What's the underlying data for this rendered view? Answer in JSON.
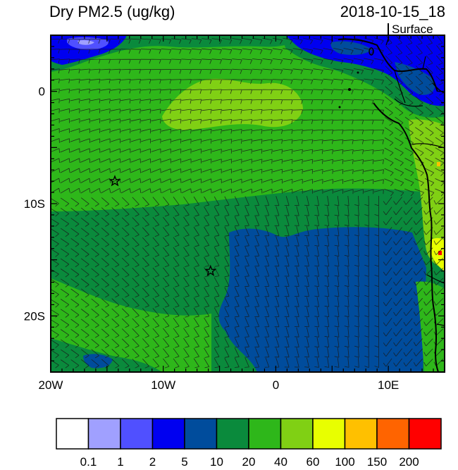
{
  "title": "Dry PM2.5 (ug/kg)",
  "datetime": "2018-10-15_18",
  "level": "Surface",
  "lon_ticks": [
    {
      "lon": -20,
      "label": "20W"
    },
    {
      "lon": -10,
      "label": "10W"
    },
    {
      "lon": 0,
      "label": "0"
    },
    {
      "lon": 10,
      "label": "10E"
    }
  ],
  "lat_ticks": [
    {
      "lat": 0,
      "label": "0"
    },
    {
      "lat": -10,
      "label": "10S"
    },
    {
      "lat": -20,
      "label": "20S"
    }
  ],
  "extent": {
    "lon_min": -20,
    "lon_max": 15,
    "lat_min": -25,
    "lat_max": 5
  },
  "colorbar": {
    "colors": [
      "#ffffff",
      "#a0a0ff",
      "#5050ff",
      "#0000f0",
      "#004c9c",
      "#0a8a3c",
      "#2eb71a",
      "#80d014",
      "#e8ff00",
      "#ffc000",
      "#ff6400",
      "#ff0000"
    ],
    "labels": [
      "0.1",
      "1",
      "2",
      "5",
      "10",
      "20",
      "40",
      "60",
      "100",
      "150",
      "200"
    ]
  },
  "stars": [
    {
      "lon": -14.3,
      "lat": -8.0
    },
    {
      "lon": -5.8,
      "lat": -16.0
    }
  ]
}
